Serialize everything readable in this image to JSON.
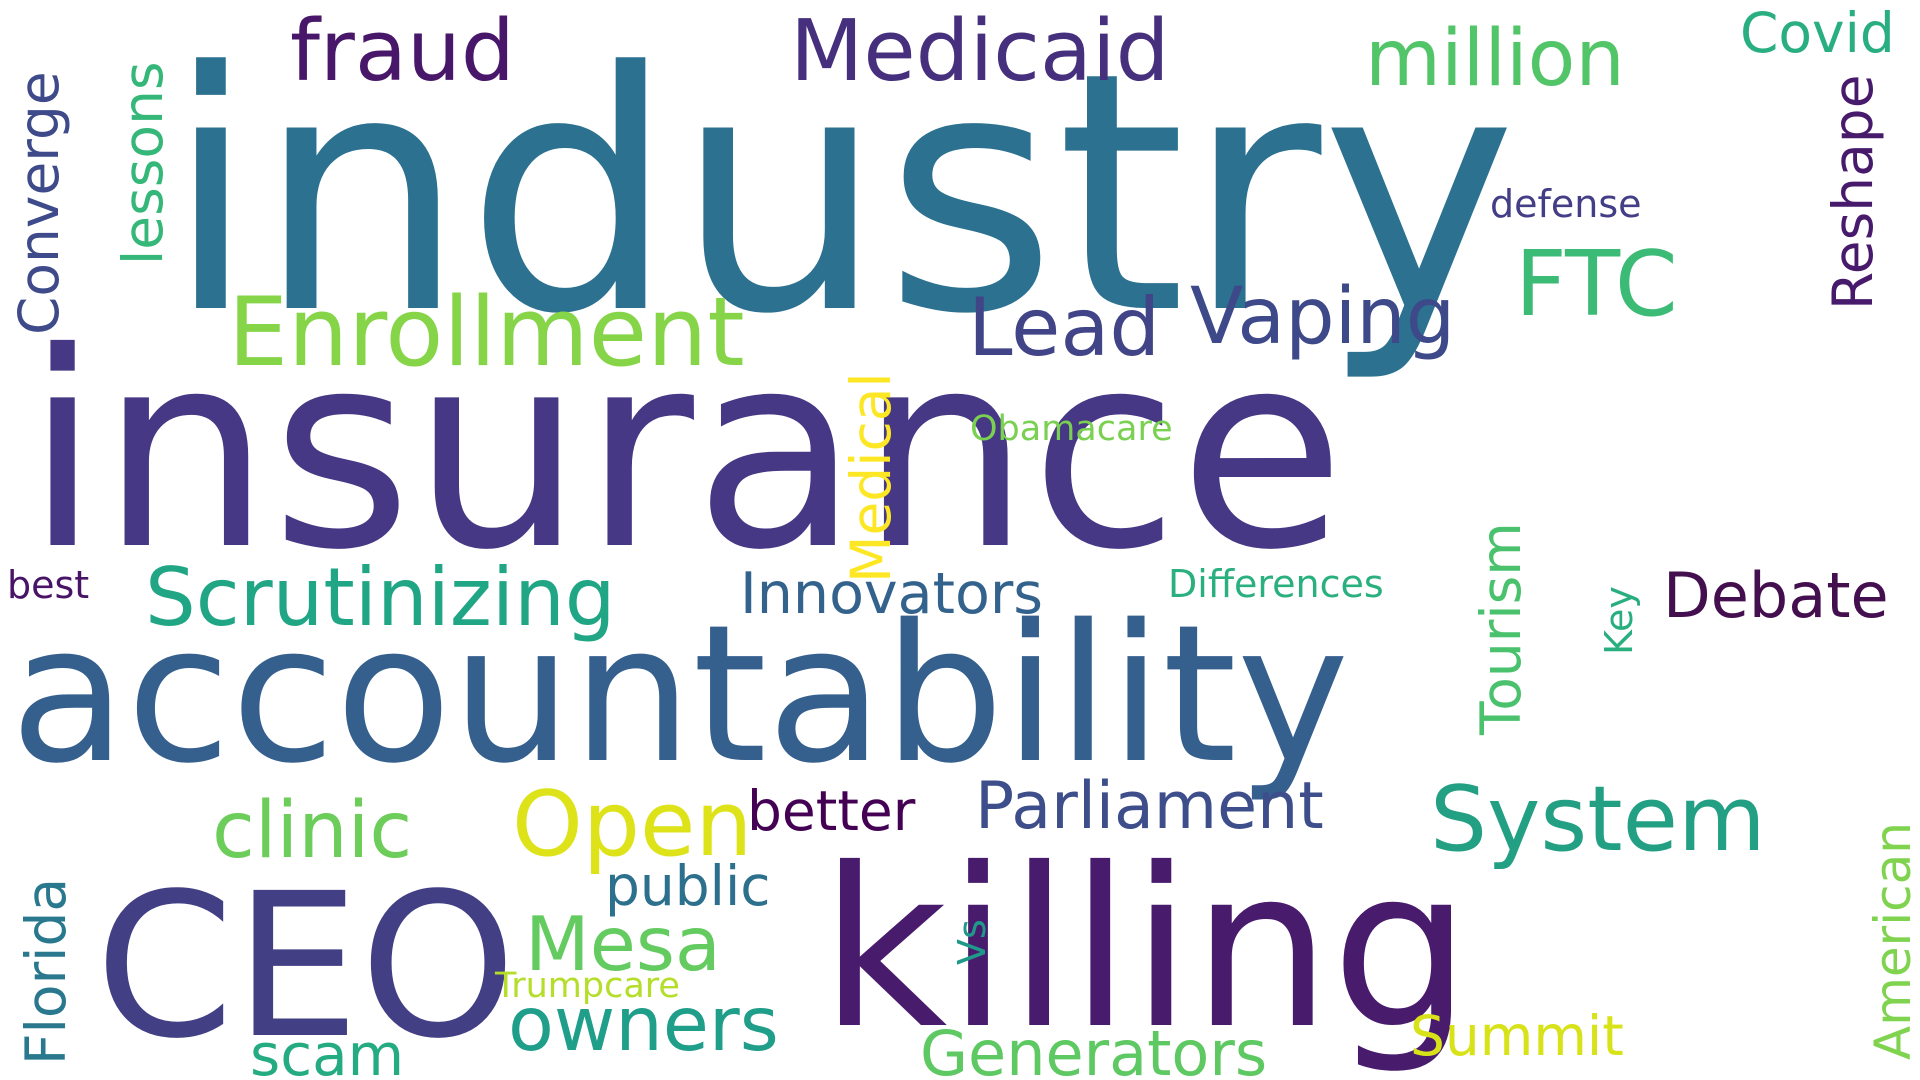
{
  "words": [
    {
      "text": "industry",
      "color": "#2c7190",
      "orientation": "horizontal"
    },
    {
      "text": "insurance",
      "color": "#463884",
      "orientation": "horizontal"
    },
    {
      "text": "accountability",
      "color": "#355f8d",
      "orientation": "horizontal"
    },
    {
      "text": "killing",
      "color": "#481b6d",
      "orientation": "horizontal"
    },
    {
      "text": "CEO",
      "color": "#423f85",
      "orientation": "horizontal"
    },
    {
      "text": "Enrollment",
      "color": "#86d549",
      "orientation": "horizontal"
    },
    {
      "text": "Scrutinizing",
      "color": "#21a685",
      "orientation": "horizontal"
    },
    {
      "text": "System",
      "color": "#23a083",
      "orientation": "horizontal"
    },
    {
      "text": "fraud",
      "color": "#481769",
      "orientation": "horizontal"
    },
    {
      "text": "Medicaid",
      "color": "#46307e",
      "orientation": "horizontal"
    },
    {
      "text": "million",
      "color": "#52c569",
      "orientation": "horizontal"
    },
    {
      "text": "Covid",
      "color": "#28ae80",
      "orientation": "horizontal"
    },
    {
      "text": "FTC",
      "color": "#3bbb75",
      "orientation": "horizontal"
    },
    {
      "text": "Lead",
      "color": "#414487",
      "orientation": "horizontal"
    },
    {
      "text": "Vaping",
      "color": "#3e4989",
      "orientation": "horizontal"
    },
    {
      "text": "defense",
      "color": "#433e85",
      "orientation": "horizontal"
    },
    {
      "text": "Obamacare",
      "color": "#7ad151",
      "orientation": "horizontal"
    },
    {
      "text": "Innovators",
      "color": "#33638d",
      "orientation": "horizontal"
    },
    {
      "text": "Differences",
      "color": "#2ab07f",
      "orientation": "horizontal"
    },
    {
      "text": "Debate",
      "color": "#440f4f",
      "orientation": "horizontal"
    },
    {
      "text": "best",
      "color": "#481467",
      "orientation": "horizontal"
    },
    {
      "text": "clinic",
      "color": "#6ccd5a",
      "orientation": "horizontal"
    },
    {
      "text": "Open",
      "color": "#dde318",
      "orientation": "horizontal"
    },
    {
      "text": "better",
      "color": "#440154",
      "orientation": "horizontal"
    },
    {
      "text": "Parliament",
      "color": "#3d4e8a",
      "orientation": "horizontal"
    },
    {
      "text": "public",
      "color": "#2d708e",
      "orientation": "horizontal"
    },
    {
      "text": "Mesa",
      "color": "#63cb5f",
      "orientation": "horizontal"
    },
    {
      "text": "Trumpcare",
      "color": "#b5de2b",
      "orientation": "horizontal"
    },
    {
      "text": "owners",
      "color": "#1f9e89",
      "orientation": "horizontal"
    },
    {
      "text": "scam",
      "color": "#25ab82",
      "orientation": "horizontal"
    },
    {
      "text": "Generators",
      "color": "#5ec962",
      "orientation": "horizontal"
    },
    {
      "text": "Summit",
      "color": "#d8e219",
      "orientation": "horizontal"
    },
    {
      "text": "lessons",
      "color": "#35b779",
      "orientation": "vertical"
    },
    {
      "text": "Converge",
      "color": "#3e4a89",
      "orientation": "vertical"
    },
    {
      "text": "Reshape",
      "color": "#481a6c",
      "orientation": "vertical"
    },
    {
      "text": "Medical",
      "color": "#fde725",
      "orientation": "vertical"
    },
    {
      "text": "Tourism",
      "color": "#4ac16d",
      "orientation": "vertical"
    },
    {
      "text": "Key",
      "color": "#29af7f",
      "orientation": "vertical"
    },
    {
      "text": "Vs",
      "color": "#1f9a8a",
      "orientation": "vertical"
    },
    {
      "text": "Florida",
      "color": "#2a788e",
      "orientation": "vertical"
    },
    {
      "text": "American",
      "color": "#7fd34e",
      "orientation": "vertical"
    }
  ]
}
